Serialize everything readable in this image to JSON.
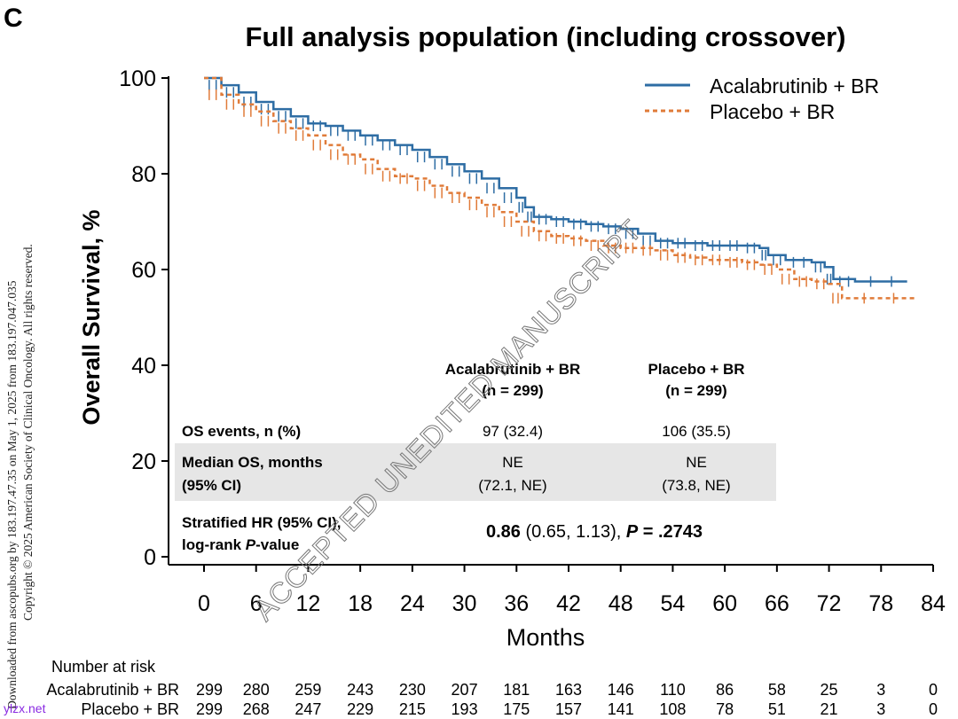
{
  "chart_data": {
    "type": "line",
    "panel_label": "C",
    "title": "Full analysis population (including crossover)",
    "xlabel": "Months",
    "ylabel": "Overall Survival, %",
    "xlim": [
      0,
      84
    ],
    "ylim": [
      0,
      100
    ],
    "xticks": [
      0,
      6,
      12,
      18,
      24,
      30,
      36,
      42,
      48,
      54,
      60,
      66,
      72,
      78,
      84
    ],
    "yticks": [
      0,
      20,
      40,
      60,
      80,
      100
    ],
    "grid": false,
    "legend_position": "top-right",
    "series": [
      {
        "name": "Acalabrutinib + BR",
        "color": "#2e6da4",
        "style": "solid",
        "x": [
          0,
          2,
          4,
          6,
          8,
          10,
          12,
          14,
          16,
          18,
          20,
          22,
          24,
          26,
          28,
          30,
          32,
          34,
          36,
          37,
          38,
          40,
          42,
          44,
          46,
          48,
          50,
          52,
          54,
          56,
          58,
          60,
          62,
          64,
          65,
          67,
          70,
          71.5,
          72.5,
          75,
          81
        ],
        "y": [
          100,
          98.5,
          97,
          95,
          93.5,
          92,
          90.5,
          90,
          89,
          88,
          87,
          86,
          85,
          83.5,
          82,
          80.5,
          79,
          77,
          75,
          73,
          71,
          70.5,
          70,
          69.5,
          69,
          68.5,
          67.5,
          66,
          65.5,
          65.5,
          65,
          65,
          65,
          64.5,
          63,
          62,
          61.5,
          60.5,
          58,
          57.5,
          57.5
        ]
      },
      {
        "name": "Placebo + BR",
        "color": "#e07b39",
        "style": "dashed",
        "x": [
          0,
          2,
          4,
          6,
          8,
          10,
          12,
          14,
          16,
          18,
          20,
          22,
          24,
          26,
          28,
          30,
          32,
          34,
          36,
          38,
          40,
          42,
          44,
          46,
          48,
          50,
          52,
          54,
          56,
          58,
          60,
          62,
          64,
          66,
          68,
          70,
          72,
          73.5,
          82
        ],
        "y": [
          100,
          96.5,
          94.5,
          93,
          91,
          89.5,
          88,
          86,
          84,
          83,
          81,
          79.5,
          79,
          77.5,
          76,
          75,
          73.5,
          72,
          70,
          68,
          67,
          66.5,
          66,
          65,
          64.5,
          64.5,
          64,
          63,
          62.5,
          62,
          62,
          61.5,
          61,
          60,
          58,
          57.5,
          57,
          54,
          54
        ]
      }
    ],
    "inset_table": {
      "columns": [
        "Acalabrutinib + BR",
        "(n = 299)",
        "Placebo + BR",
        "(n = 299)"
      ],
      "rows": [
        {
          "label": "OS events, n (%)",
          "acal": "97 (32.4)",
          "placebo": "106 (35.5)"
        },
        {
          "label1": "Median OS, months",
          "label2": "(95% CI)",
          "acal1": "NE",
          "acal2": "(72.1, NE)",
          "placebo1": "NE",
          "placebo2": "(73.8, NE)"
        },
        {
          "label1": "Stratified HR (95% CI),",
          "label2a": "log-rank ",
          "label2b": "P",
          "label2c": "-value",
          "hr": "0.86",
          "ci": " (0.65, 1.13), ",
          "p_label": "P",
          "p_value": " = .2743"
        }
      ]
    },
    "risk_table": {
      "title": "Number at risk",
      "rows": [
        {
          "label": "Acalabrutinib + BR",
          "values": [
            "299",
            "280",
            "259",
            "243",
            "230",
            "207",
            "181",
            "163",
            "146",
            "110",
            "86",
            "58",
            "25",
            "3",
            "0"
          ]
        },
        {
          "label": "Placebo + BR",
          "values": [
            "299",
            "268",
            "247",
            "229",
            "215",
            "193",
            "175",
            "157",
            "141",
            "108",
            "78",
            "51",
            "21",
            "3",
            "0"
          ]
        }
      ]
    },
    "watermark": "ACCEPTED UNEDITED MANUSCRIPT"
  },
  "side_note": {
    "line1": "Downloaded from ascopubs.org by 183.197.47.35 on May 1, 2025 from 183.197.047.035",
    "line2": "Copyright © 2025 American Society of Clinical Oncology. All rights reserved."
  },
  "site_mark": "ylzx.net"
}
